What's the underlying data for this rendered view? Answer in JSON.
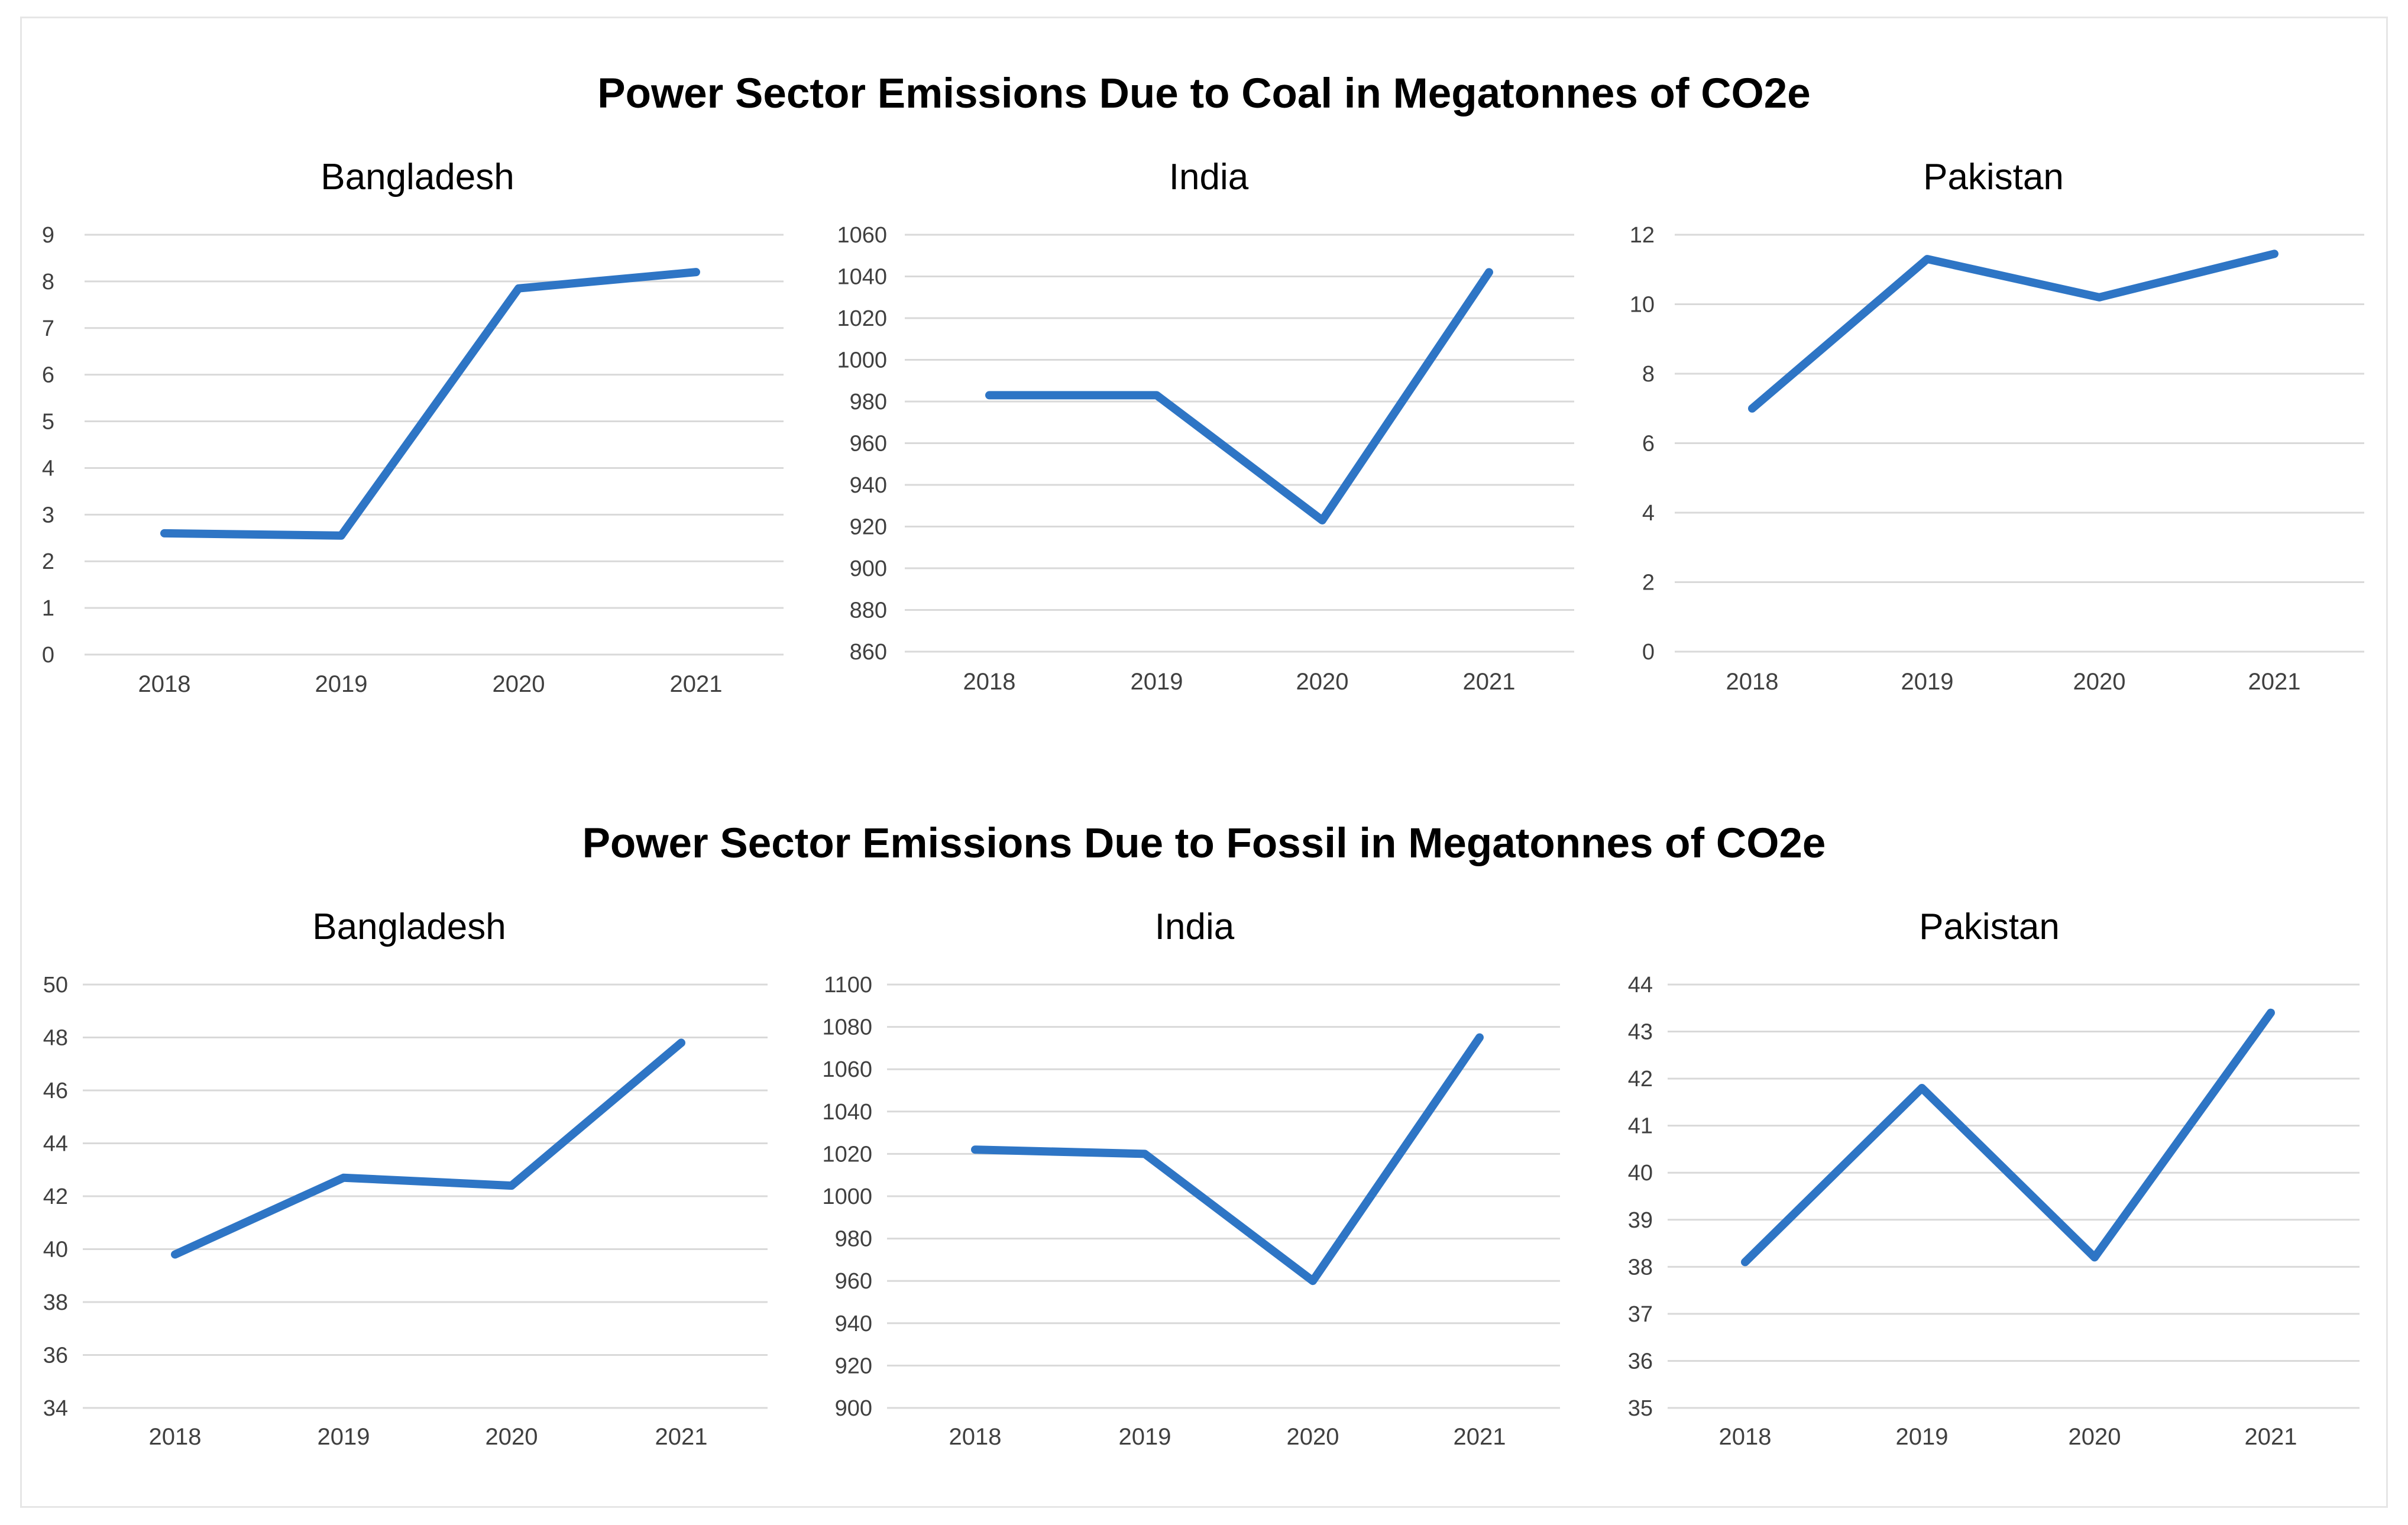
{
  "colors": {
    "line": "#2E75C5",
    "grid": "#D9D9D9",
    "text": "#000000",
    "tick_text": "#404040"
  },
  "sections": [
    {
      "title": "Power Sector Emissions Due to Coal in Megatonnes of CO2e"
    },
    {
      "title": "Power Sector Emissions Due to Fossil in Megatonnes of CO2e"
    }
  ],
  "chart_data": [
    {
      "type": "line",
      "title": "Bangladesh",
      "categories": [
        "2018",
        "2019",
        "2020",
        "2021"
      ],
      "series": [
        {
          "values": [
            2.6,
            2.55,
            7.85,
            8.2
          ]
        }
      ],
      "ylim": [
        0,
        9
      ],
      "yticks": [
        0,
        1,
        2,
        3,
        4,
        5,
        6,
        7,
        8,
        9
      ],
      "grid": true,
      "legend": "none"
    },
    {
      "type": "line",
      "title": "India",
      "categories": [
        "2018",
        "2019",
        "2020",
        "2021"
      ],
      "series": [
        {
          "values": [
            983,
            983,
            923,
            1042
          ]
        }
      ],
      "ylim": [
        860,
        1060
      ],
      "yticks": [
        860,
        880,
        900,
        920,
        940,
        960,
        980,
        1000,
        1020,
        1040,
        1060
      ],
      "grid": true,
      "legend": "none"
    },
    {
      "type": "line",
      "title": "Pakistan",
      "categories": [
        "2018",
        "2019",
        "2020",
        "2021"
      ],
      "series": [
        {
          "values": [
            7.0,
            11.3,
            10.2,
            11.45
          ]
        }
      ],
      "ylim": [
        0,
        12
      ],
      "yticks": [
        0,
        2,
        4,
        6,
        8,
        10,
        12
      ],
      "grid": true,
      "legend": "none"
    },
    {
      "type": "line",
      "title": "Bangladesh",
      "categories": [
        "2018",
        "2019",
        "2020",
        "2021"
      ],
      "series": [
        {
          "values": [
            39.8,
            42.7,
            42.4,
            47.8
          ]
        }
      ],
      "ylim": [
        34,
        50
      ],
      "yticks": [
        34,
        36,
        38,
        40,
        42,
        44,
        46,
        48,
        50
      ],
      "grid": true,
      "legend": "none"
    },
    {
      "type": "line",
      "title": "India",
      "categories": [
        "2018",
        "2019",
        "2020",
        "2021"
      ],
      "series": [
        {
          "values": [
            1022,
            1020,
            960,
            1075
          ]
        }
      ],
      "ylim": [
        900,
        1100
      ],
      "yticks": [
        900,
        920,
        940,
        960,
        980,
        1000,
        1020,
        1040,
        1060,
        1080,
        1100
      ],
      "grid": true,
      "legend": "none"
    },
    {
      "type": "line",
      "title": "Pakistan",
      "categories": [
        "2018",
        "2019",
        "2020",
        "2021"
      ],
      "series": [
        {
          "values": [
            38.1,
            41.8,
            38.2,
            43.4
          ]
        }
      ],
      "ylim": [
        35,
        44
      ],
      "yticks": [
        35,
        36,
        37,
        38,
        39,
        40,
        41,
        42,
        43,
        44
      ],
      "grid": true,
      "legend": "none"
    }
  ]
}
